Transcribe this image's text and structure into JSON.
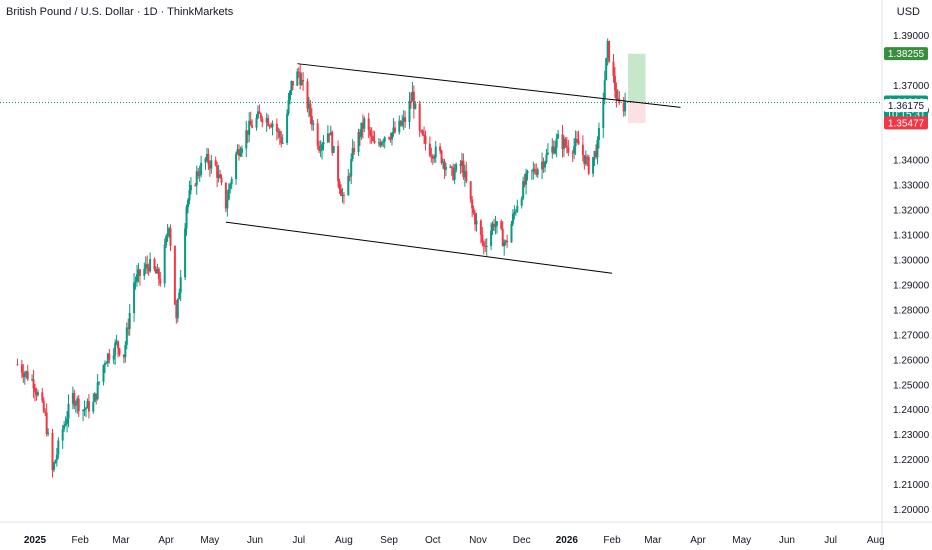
{
  "header": {
    "title": "British Pound / U.S. Dollar · 1D · ThinkMarkets",
    "currency": "USD"
  },
  "colors": {
    "up": "#089981",
    "down": "#f23645",
    "trendline": "#000000",
    "target_zone": "#c8e6c9",
    "stop_zone": "#fde0e3",
    "grid_text": "#131722",
    "current_price_line": "#089981"
  },
  "chart_data": {
    "type": "candlestick",
    "title": "British Pound / U.S. Dollar · 1D · ThinkMarkets",
    "xlabel": "",
    "ylabel": "",
    "ylim": [
      1.195,
      1.395
    ],
    "y_ticks": [
      "1.39000",
      "1.37000",
      "1.36000",
      "1.34000",
      "1.33000",
      "1.32000",
      "1.31000",
      "1.30000",
      "1.29000",
      "1.28000",
      "1.27000",
      "1.26000",
      "1.25000",
      "1.24000",
      "1.23000",
      "1.22000",
      "1.21000",
      "1.20000"
    ],
    "x_ticks": [
      {
        "label": "2025",
        "date": "2025-01-01",
        "bold": true
      },
      {
        "label": "Feb",
        "date": "2025-02-01"
      },
      {
        "label": "Mar",
        "date": "2025-03-01"
      },
      {
        "label": "Apr",
        "date": "2025-04-01"
      },
      {
        "label": "May",
        "date": "2025-05-01"
      },
      {
        "label": "Jun",
        "date": "2025-06-01"
      },
      {
        "label": "Jul",
        "date": "2025-07-01"
      },
      {
        "label": "Aug",
        "date": "2025-08-01"
      },
      {
        "label": "Sep",
        "date": "2025-09-01"
      },
      {
        "label": "Oct",
        "date": "2025-10-01"
      },
      {
        "label": "Nov",
        "date": "2025-11-01"
      },
      {
        "label": "Dec",
        "date": "2025-12-01"
      },
      {
        "label": "2026",
        "date": "2026-01-01",
        "bold": true
      },
      {
        "label": "Feb",
        "date": "2026-02-01"
      },
      {
        "label": "Mar",
        "date": "2026-03-01"
      },
      {
        "label": "Apr",
        "date": "2026-04-01"
      },
      {
        "label": "May",
        "date": "2026-05-01"
      },
      {
        "label": "Jun",
        "date": "2026-06-01"
      },
      {
        "label": "Jul",
        "date": "2026-07-01"
      },
      {
        "label": "Aug",
        "date": "2026-08-01"
      }
    ],
    "price_path": [
      [
        "2024-12-20",
        1.258
      ],
      [
        "2024-12-31",
        1.251
      ],
      [
        "2025-01-08",
        1.237
      ],
      [
        "2025-01-13",
        1.215
      ],
      [
        "2025-01-20",
        1.232
      ],
      [
        "2025-01-27",
        1.245
      ],
      [
        "2025-02-03",
        1.24
      ],
      [
        "2025-02-10",
        1.242
      ],
      [
        "2025-02-18",
        1.26
      ],
      [
        "2025-02-26",
        1.266
      ],
      [
        "2025-03-03",
        1.262
      ],
      [
        "2025-03-10",
        1.291
      ],
      [
        "2025-03-20",
        1.298
      ],
      [
        "2025-03-28",
        1.292
      ],
      [
        "2025-04-03",
        1.315
      ],
      [
        "2025-04-08",
        1.275
      ],
      [
        "2025-04-15",
        1.322
      ],
      [
        "2025-04-22",
        1.334
      ],
      [
        "2025-04-28",
        1.34
      ],
      [
        "2025-05-05",
        1.337
      ],
      [
        "2025-05-12",
        1.322
      ],
      [
        "2025-05-19",
        1.342
      ],
      [
        "2025-05-27",
        1.352
      ],
      [
        "2025-06-05",
        1.358
      ],
      [
        "2025-06-13",
        1.355
      ],
      [
        "2025-06-20",
        1.347
      ],
      [
        "2025-06-26",
        1.37
      ],
      [
        "2025-07-01",
        1.375
      ],
      [
        "2025-07-08",
        1.36
      ],
      [
        "2025-07-15",
        1.346
      ],
      [
        "2025-07-22",
        1.352
      ],
      [
        "2025-07-28",
        1.333
      ],
      [
        "2025-08-01",
        1.323
      ],
      [
        "2025-08-08",
        1.345
      ],
      [
        "2025-08-15",
        1.355
      ],
      [
        "2025-08-22",
        1.345
      ],
      [
        "2025-08-29",
        1.35
      ],
      [
        "2025-09-05",
        1.351
      ],
      [
        "2025-09-12",
        1.356
      ],
      [
        "2025-09-17",
        1.366
      ],
      [
        "2025-09-22",
        1.35
      ],
      [
        "2025-09-29",
        1.344
      ],
      [
        "2025-10-06",
        1.342
      ],
      [
        "2025-10-14",
        1.334
      ],
      [
        "2025-10-21",
        1.338
      ],
      [
        "2025-10-28",
        1.32
      ],
      [
        "2025-11-05",
        1.305
      ],
      [
        "2025-11-12",
        1.315
      ],
      [
        "2025-11-20",
        1.306
      ],
      [
        "2025-11-28",
        1.323
      ],
      [
        "2025-12-05",
        1.333
      ],
      [
        "2025-12-12",
        1.337
      ],
      [
        "2025-12-19",
        1.342
      ],
      [
        "2025-12-26",
        1.348
      ],
      [
        "2026-01-02",
        1.345
      ],
      [
        "2026-01-09",
        1.346
      ],
      [
        "2026-01-16",
        1.337
      ],
      [
        "2026-01-22",
        1.345
      ],
      [
        "2026-01-26",
        1.366
      ],
      [
        "2026-01-29",
        1.385
      ],
      [
        "2026-02-02",
        1.372
      ],
      [
        "2026-02-05",
        1.362
      ],
      [
        "2026-02-08",
        1.36
      ],
      [
        "2026-02-10",
        1.363
      ]
    ],
    "trendlines": [
      {
        "start": [
          "2025-06-30",
          1.3785
        ],
        "end": [
          "2026-03-20",
          1.361
        ]
      },
      {
        "start": [
          "2025-05-12",
          1.315
        ],
        "end": [
          "2026-02-01",
          1.2945
        ]
      }
    ],
    "position_zones": [
      {
        "kind": "target",
        "start": "2026-02-12",
        "end": "2026-02-24",
        "top": 1.3825,
        "bottom": 1.363
      },
      {
        "kind": "stop",
        "start": "2026-02-12",
        "end": "2026-02-24",
        "top": 1.363,
        "bottom": 1.3547
      }
    ],
    "price_labels": [
      {
        "name": "target-price-label",
        "text": "1.38255",
        "value": 1.38255,
        "color": "#388e3c"
      },
      {
        "name": "current-price-label",
        "text": "1.36296",
        "value": 1.36296,
        "color": "#089981",
        "subtext": "10:15:31"
      },
      {
        "name": "level-price-label",
        "text": "1.36175",
        "value": 1.36175,
        "color": "#ffffff",
        "text_color": "#131722"
      },
      {
        "name": "stop-price-label",
        "text": "1.35477",
        "value": 1.35477,
        "color": "#f23645"
      }
    ],
    "current_price": 1.36296
  }
}
